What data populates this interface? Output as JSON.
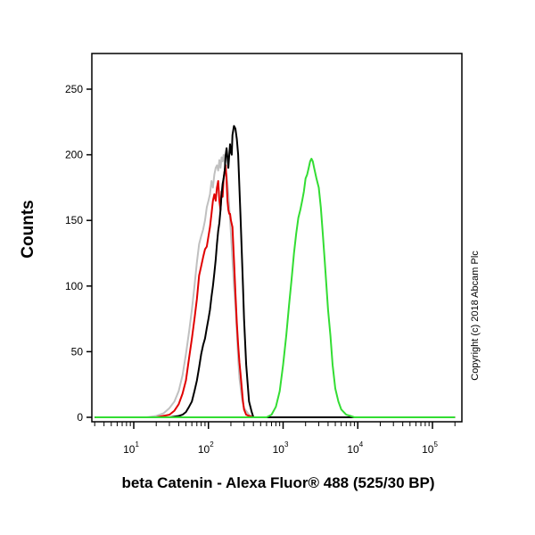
{
  "chart_data": {
    "type": "line",
    "title": "",
    "xlabel": "beta Catenin - Alexa Fluor® 488 (525/30 BP)",
    "ylabel": "Counts",
    "x_scale": "log",
    "xlim": [
      3,
      200000
    ],
    "ylim": [
      0,
      275
    ],
    "x_ticks": [
      {
        "base": "10",
        "exp": "1",
        "value": 10
      },
      {
        "base": "10",
        "exp": "2",
        "value": 100
      },
      {
        "base": "10",
        "exp": "3",
        "value": 1000
      },
      {
        "base": "10",
        "exp": "4",
        "value": 10000
      },
      {
        "base": "10",
        "exp": "5",
        "value": 100000
      }
    ],
    "y_ticks": [
      {
        "label": "0",
        "value": 0
      },
      {
        "label": "50",
        "value": 50
      },
      {
        "label": "100",
        "value": 100
      },
      {
        "label": "150",
        "value": 150
      },
      {
        "label": "200",
        "value": 200
      },
      {
        "label": "250",
        "value": 250
      }
    ],
    "grid": false,
    "legend": "none",
    "annotation": "Copyright (c) 2018 Abcam Plc",
    "series": [
      {
        "color": "#c0c0c0",
        "x": [
          3,
          15,
          20,
          25,
          30,
          35,
          40,
          45,
          50,
          55,
          60,
          65,
          70,
          75,
          80,
          85,
          90,
          95,
          100,
          105,
          110,
          115,
          120,
          125,
          130,
          135,
          140,
          145,
          150,
          155,
          160,
          165,
          170,
          175,
          180,
          185,
          190,
          200,
          210,
          220,
          230,
          240,
          250,
          260,
          280,
          300,
          350,
          400,
          200000
        ],
        "y": [
          0,
          0,
          1,
          3,
          7,
          12,
          20,
          32,
          48,
          65,
          82,
          100,
          118,
          132,
          138,
          143,
          150,
          160,
          165,
          170,
          180,
          175,
          185,
          190,
          192,
          188,
          196,
          190,
          198,
          195,
          200,
          195,
          188,
          185,
          178,
          170,
          160,
          140,
          120,
          100,
          85,
          65,
          45,
          30,
          15,
          7,
          2,
          0,
          0
        ]
      },
      {
        "color": "#e00000",
        "x": [
          3,
          20,
          30,
          35,
          40,
          45,
          50,
          55,
          60,
          65,
          70,
          75,
          80,
          85,
          90,
          95,
          100,
          105,
          110,
          115,
          120,
          125,
          130,
          135,
          140,
          145,
          150,
          155,
          160,
          165,
          170,
          175,
          180,
          185,
          190,
          195,
          200,
          210,
          220,
          230,
          240,
          250,
          260,
          270,
          280,
          290,
          300,
          320,
          350,
          400,
          200000
        ],
        "y": [
          0,
          0,
          2,
          5,
          10,
          18,
          28,
          45,
          60,
          75,
          90,
          108,
          115,
          122,
          128,
          130,
          138,
          145,
          155,
          165,
          170,
          165,
          175,
          180,
          165,
          158,
          172,
          168,
          182,
          188,
          192,
          180,
          165,
          158,
          155,
          155,
          150,
          145,
          120,
          95,
          72,
          55,
          42,
          32,
          22,
          12,
          6,
          2,
          1,
          0,
          0
        ]
      },
      {
        "color": "#000000",
        "x": [
          3,
          30,
          40,
          45,
          50,
          55,
          60,
          65,
          70,
          75,
          80,
          85,
          90,
          95,
          100,
          105,
          110,
          115,
          120,
          125,
          130,
          135,
          140,
          145,
          150,
          155,
          160,
          165,
          170,
          175,
          180,
          185,
          190,
          195,
          200,
          205,
          210,
          220,
          230,
          240,
          250,
          260,
          270,
          280,
          290,
          300,
          320,
          350,
          380,
          400,
          200000
        ],
        "y": [
          0,
          0,
          1,
          2,
          4,
          8,
          12,
          20,
          28,
          38,
          48,
          55,
          60,
          68,
          75,
          82,
          92,
          100,
          110,
          120,
          132,
          142,
          148,
          158,
          170,
          178,
          182,
          188,
          200,
          205,
          198,
          190,
          200,
          208,
          202,
          200,
          215,
          222,
          220,
          212,
          200,
          175,
          150,
          125,
          100,
          75,
          40,
          12,
          4,
          0,
          0
        ]
      },
      {
        "color": "#33dd33",
        "x": [
          3,
          600,
          700,
          800,
          900,
          1000,
          1100,
          1200,
          1300,
          1400,
          1500,
          1600,
          1700,
          1800,
          1900,
          2000,
          2100,
          2200,
          2300,
          2400,
          2500,
          2600,
          2800,
          3000,
          3200,
          3400,
          3600,
          3800,
          4000,
          4300,
          4600,
          5000,
          5500,
          6000,
          7000,
          8000,
          9000,
          200000
        ],
        "y": [
          0,
          0,
          2,
          8,
          20,
          40,
          62,
          85,
          105,
          125,
          140,
          152,
          158,
          165,
          172,
          182,
          185,
          190,
          195,
          197,
          195,
          190,
          182,
          175,
          160,
          140,
          120,
          100,
          82,
          62,
          40,
          22,
          12,
          6,
          2,
          1,
          0,
          0
        ]
      }
    ]
  }
}
